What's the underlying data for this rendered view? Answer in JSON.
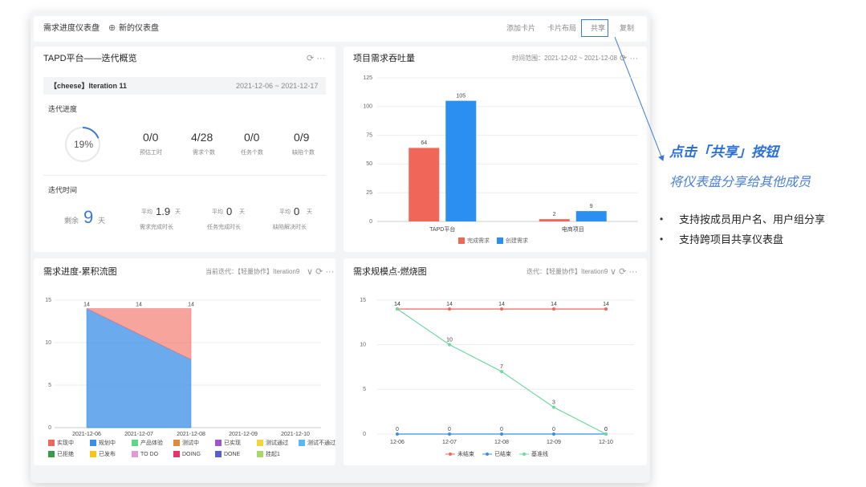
{
  "toolbar": {
    "dashboard": "需求进度仪表盘",
    "new": "新的仪表盘",
    "actions": [
      "添加卡片",
      "卡片布局",
      "共享",
      "复制"
    ]
  },
  "overview": {
    "title": "TAPD平台——迭代概览",
    "iteration": "【cheese】Iteration 11",
    "dates": "2021-12-06 ~ 2021-12-17",
    "progress_title": "迭代进度",
    "progress": {
      "value": 19,
      "label": "19%"
    },
    "stats": [
      {
        "value": "0/0",
        "label": "预估工时"
      },
      {
        "value": "4/28",
        "label": "需求个数"
      },
      {
        "value": "0/0",
        "label": "任务个数"
      },
      {
        "value": "0/9",
        "label": "缺陷个数"
      }
    ],
    "time_title": "迭代时间",
    "remain": {
      "prefix": "剩余",
      "value": "9",
      "unit": "天"
    },
    "averages": [
      {
        "prefix": "平均",
        "value": "1.9",
        "unit": "天",
        "label": "需求完成时长"
      },
      {
        "prefix": "平均",
        "value": "0",
        "unit": "天",
        "label": "任务完成时长"
      },
      {
        "prefix": "平均",
        "value": "0",
        "unit": "天",
        "label": "缺陷解决时长"
      }
    ]
  },
  "chart_data": [
    {
      "type": "bar",
      "title": "项目需求吞吐量",
      "subtitle": "时间范围：2021-12-02 ~ 2021-12-08",
      "categories": [
        "TAPD平台",
        "电商项目"
      ],
      "series": [
        {
          "name": "完成需求",
          "color": "#f0675a",
          "values": [
            64,
            2
          ]
        },
        {
          "name": "创建需求",
          "color": "#2a8ff0",
          "values": [
            105,
            9
          ]
        }
      ],
      "ylim": [
        0,
        125
      ],
      "yticks": [
        0,
        25,
        50,
        75,
        100,
        125
      ],
      "grid": true
    },
    {
      "type": "area",
      "title": "需求进度-累积流图",
      "subtitle": "当前迭代：【轻量协作】Iteration9",
      "x": [
        "2021-12-06",
        "2021-12-07",
        "2021-12-08",
        "2021-12-09",
        "2021-12-10"
      ],
      "series": [
        {
          "name": "实现中",
          "color": "#f0675a",
          "values": [
            0,
            3,
            6,
            null,
            null
          ]
        },
        {
          "name": "规划中",
          "color": "#3a8ee6",
          "values": [
            14,
            11,
            8,
            null,
            null
          ]
        },
        {
          "name": "产品体验",
          "color": "#5cd68a",
          "values": [
            0,
            0,
            0,
            null,
            null
          ]
        },
        {
          "name": "测试中",
          "color": "#e08a3a",
          "values": [
            0,
            0,
            0,
            null,
            null
          ]
        },
        {
          "name": "已实现",
          "color": "#a055c8",
          "values": [
            0,
            0,
            0,
            null,
            null
          ]
        },
        {
          "name": "测试通过",
          "color": "#f2d53c",
          "values": [
            0,
            0,
            0,
            null,
            null
          ]
        },
        {
          "name": "测试不通过",
          "color": "#5ab8f0",
          "values": [
            0,
            0,
            0,
            null,
            null
          ]
        },
        {
          "name": "已拒绝",
          "color": "#3a9a4a",
          "values": [
            0,
            0,
            0,
            null,
            null
          ]
        },
        {
          "name": "已发布",
          "color": "#f5c518",
          "values": [
            0,
            0,
            0,
            null,
            null
          ]
        },
        {
          "name": "TO DO",
          "color": "#e09ad8",
          "values": [
            0,
            0,
            0,
            null,
            null
          ]
        },
        {
          "name": "DOING",
          "color": "#e8336a",
          "values": [
            0,
            0,
            0,
            null,
            null
          ]
        },
        {
          "name": "DONE",
          "color": "#5560c8",
          "values": [
            0,
            0,
            0,
            null,
            null
          ]
        },
        {
          "name": "挂起1",
          "color": "#a8d86a",
          "values": [
            0,
            0,
            0,
            null,
            null
          ]
        }
      ],
      "total_labels": [
        "14",
        "14",
        "14",
        null,
        null
      ],
      "ylim": [
        0,
        15
      ],
      "yticks": [
        0,
        5,
        10,
        15
      ],
      "grid": true
    },
    {
      "type": "line",
      "title": "需求规模点-燃烧图",
      "subtitle": "迭代：【轻量协作】Iteration9",
      "x": [
        "12-06",
        "12-07",
        "12-08",
        "12-09",
        "12-10"
      ],
      "series": [
        {
          "name": "未结束",
          "color": "#f0675a",
          "values": [
            14,
            14,
            14,
            14,
            14
          ]
        },
        {
          "name": "已结束",
          "color": "#3a8ee6",
          "values": [
            0,
            0,
            0,
            0,
            0
          ]
        },
        {
          "name": "基准线",
          "color": "#6dd9a0",
          "values": [
            14,
            10,
            7,
            3,
            0
          ]
        }
      ],
      "ylim": [
        0,
        15
      ],
      "yticks": [
        0,
        5,
        10,
        15
      ],
      "grid": true
    }
  ],
  "callout": {
    "title": "点击「共享」按钮",
    "subtitle": "将仪表盘分享给其他成员",
    "bullets": [
      "支持按成员用户名、用户组分享",
      "支持跨项目共享仪表盘"
    ]
  }
}
